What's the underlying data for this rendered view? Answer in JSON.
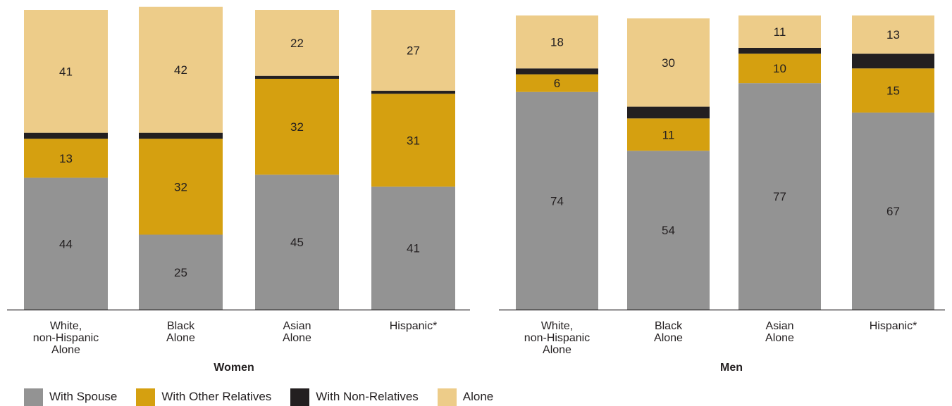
{
  "colors": {
    "with_spouse": "#939393",
    "with_other_relatives": "#d5a010",
    "with_non_relatives": "#231f20",
    "alone": "#edcc89"
  },
  "legend": [
    {
      "label": "With Spouse",
      "color_key": "with_spouse"
    },
    {
      "label": "With Other Relatives",
      "color_key": "with_other_relatives"
    },
    {
      "label": "With Non-Relatives",
      "color_key": "with_non_relatives"
    },
    {
      "label": "Alone",
      "color_key": "alone"
    }
  ],
  "chart_data": [
    {
      "type": "bar",
      "stacked": true,
      "title": "Women",
      "ylim": [
        0,
        100
      ],
      "categories": [
        [
          "White,",
          "non-Hispanic",
          "Alone"
        ],
        [
          "Black",
          "Alone"
        ],
        [
          "Asian",
          "Alone"
        ],
        [
          "Hispanic*"
        ]
      ],
      "series": [
        {
          "name": "With Spouse",
          "color_key": "with_spouse",
          "values": [
            44,
            25,
            45,
            41
          ]
        },
        {
          "name": "With Other Relatives",
          "color_key": "with_other_relatives",
          "values": [
            13,
            32,
            32,
            31
          ]
        },
        {
          "name": "With Non-Relatives",
          "color_key": "with_non_relatives",
          "values": [
            2,
            2,
            1,
            1
          ]
        },
        {
          "name": "Alone",
          "color_key": "alone",
          "values": [
            41,
            42,
            22,
            27
          ]
        }
      ]
    },
    {
      "type": "bar",
      "stacked": true,
      "title": "Men",
      "ylim": [
        0,
        100
      ],
      "categories": [
        [
          "White,",
          "non-Hispanic",
          "Alone"
        ],
        [
          "Black",
          "Alone"
        ],
        [
          "Asian",
          "Alone"
        ],
        [
          "Hispanic*"
        ]
      ],
      "series": [
        {
          "name": "With Spouse",
          "color_key": "with_spouse",
          "values": [
            74,
            54,
            77,
            67
          ]
        },
        {
          "name": "With Other Relatives",
          "color_key": "with_other_relatives",
          "values": [
            6,
            11,
            10,
            15
          ]
        },
        {
          "name": "With Non-Relatives",
          "color_key": "with_non_relatives",
          "values": [
            2,
            4,
            2,
            5
          ]
        },
        {
          "name": "Alone",
          "color_key": "alone",
          "values": [
            18,
            30,
            11,
            13
          ]
        }
      ]
    }
  ]
}
